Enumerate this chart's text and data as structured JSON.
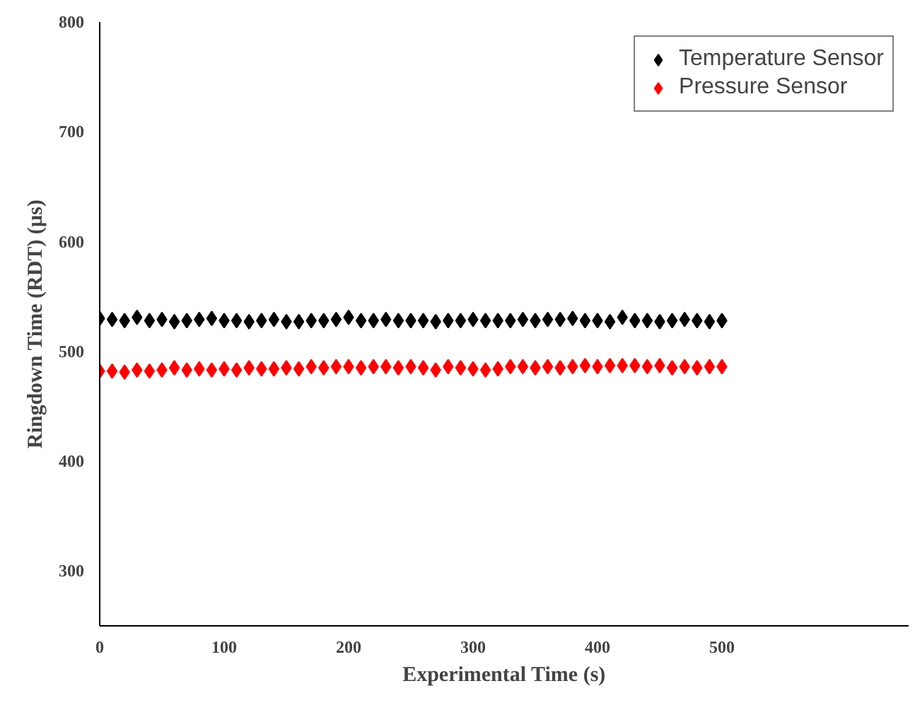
{
  "chart_data": {
    "type": "scatter",
    "xlabel": "Experimental Time (s)",
    "ylabel": "Ringdown Time (RDT) (µs)",
    "x": [
      0,
      10,
      20,
      30,
      40,
      50,
      60,
      70,
      80,
      90,
      100,
      110,
      120,
      130,
      140,
      150,
      160,
      170,
      180,
      190,
      200,
      210,
      220,
      230,
      240,
      250,
      260,
      270,
      280,
      290,
      300,
      310,
      320,
      330,
      340,
      350,
      360,
      370,
      380,
      390,
      400,
      410,
      420,
      430,
      440,
      450,
      460,
      470,
      480,
      490,
      500
    ],
    "series": [
      {
        "name": "Temperature Sensor",
        "color": "#000000",
        "values": [
          530,
          529,
          528,
          531,
          528,
          529,
          527,
          528,
          529,
          530,
          528,
          528,
          527,
          528,
          529,
          527,
          527,
          528,
          528,
          529,
          531,
          528,
          528,
          529,
          528,
          528,
          528,
          527,
          528,
          528,
          529,
          528,
          528,
          528,
          529,
          528,
          529,
          529,
          530,
          528,
          528,
          527,
          531,
          528,
          528,
          527,
          528,
          529,
          528,
          527,
          528
        ]
      },
      {
        "name": "Pressure Sensor",
        "color": "#ff0000",
        "values": [
          482,
          482,
          481,
          483,
          482,
          483,
          485,
          483,
          484,
          483,
          484,
          483,
          485,
          484,
          484,
          485,
          484,
          486,
          485,
          486,
          486,
          485,
          486,
          486,
          485,
          486,
          485,
          483,
          486,
          485,
          484,
          483,
          484,
          486,
          486,
          485,
          486,
          485,
          486,
          487,
          486,
          487,
          487,
          487,
          486,
          487,
          485,
          486,
          485,
          486,
          486
        ]
      }
    ],
    "xlim": [
      0,
      650
    ],
    "ylim": [
      250,
      800
    ],
    "xticks": [
      0,
      100,
      200,
      300,
      400,
      500
    ],
    "yticks": [
      300,
      400,
      500,
      600,
      700,
      800
    ],
    "marker": "diamond",
    "grid": false,
    "legend": "top right"
  }
}
